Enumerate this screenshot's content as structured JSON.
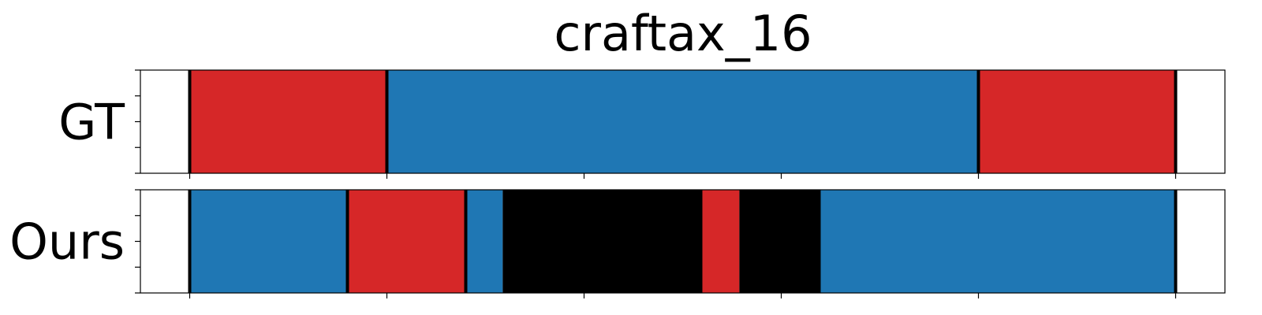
{
  "chart_data": {
    "type": "segmentation-bar",
    "title": "craftax_16",
    "xlim": [
      0,
      22
    ],
    "xtick_values": [
      1,
      5,
      9,
      13,
      17,
      21
    ],
    "show_xtick_labels": false,
    "colors": {
      "red": "#d62728",
      "blue": "#1f77b4",
      "black": "#000000",
      "boundary": "#000000"
    },
    "rows": [
      {
        "label": "GT",
        "segments": [
          {
            "start": 1,
            "end": 5,
            "color": "red"
          },
          {
            "start": 5,
            "end": 17,
            "color": "blue"
          },
          {
            "start": 17,
            "end": 21,
            "color": "red"
          }
        ],
        "boundaries": [
          1,
          5,
          17,
          21
        ]
      },
      {
        "label": "Ours",
        "segments": [
          {
            "start": 1,
            "end": 4.2,
            "color": "blue"
          },
          {
            "start": 4.2,
            "end": 6.6,
            "color": "red"
          },
          {
            "start": 6.6,
            "end": 7.35,
            "color": "blue"
          },
          {
            "start": 7.35,
            "end": 11.4,
            "color": "black"
          },
          {
            "start": 11.4,
            "end": 12.15,
            "color": "red"
          },
          {
            "start": 12.15,
            "end": 13.8,
            "color": "black"
          },
          {
            "start": 13.8,
            "end": 21,
            "color": "blue"
          }
        ],
        "boundaries": [
          1,
          4.2,
          6.6,
          21
        ]
      }
    ]
  }
}
